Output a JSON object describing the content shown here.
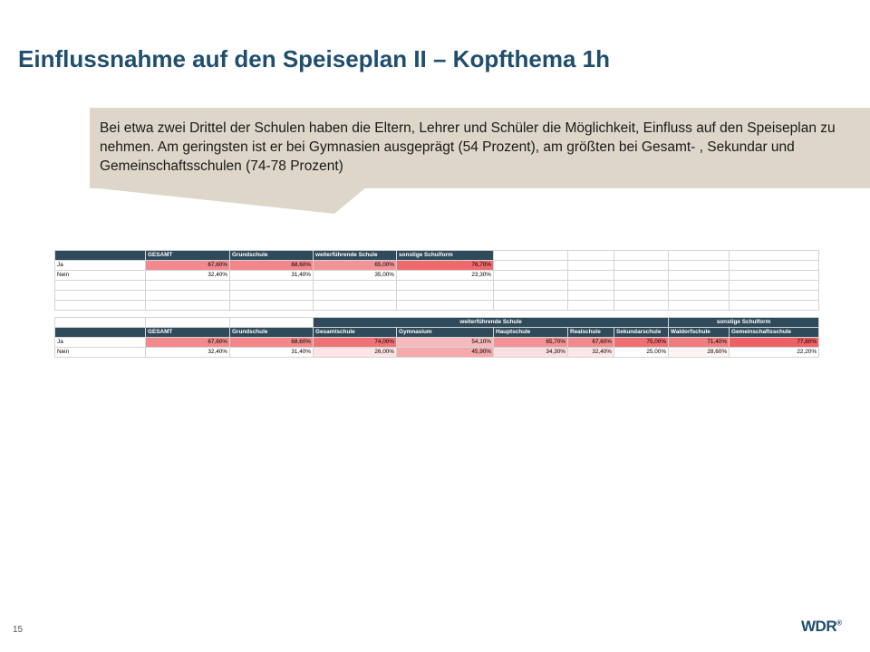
{
  "slide": {
    "title": "Einflussnahme  auf den Speiseplan II – Kopfthema 1h",
    "callout": "Bei etwa zwei Drittel der Schulen haben die Eltern, Lehrer und Schüler die Möglichkeit, Einfluss auf den Speiseplan zu nehmen. Am geringsten ist er bei Gymnasien ausgeprägt (54 Prozent), am größten bei Gesamt- , Sekundar und Gemeinschaftsschulen  (74-78 Prozent)",
    "callout_color": "#ddd6c9",
    "title_color": "#1f4e6e",
    "header_color": "#2e4a5b",
    "page_number": "15",
    "logo": "WDR",
    "logo_mark": "®"
  },
  "table1": {
    "headers": [
      "GESAMT",
      "Grundschule",
      "weiterführende Schule",
      "sonstige Schulform"
    ],
    "rows": [
      {
        "label": "Ja",
        "values": [
          "67,60%",
          "68,60%",
          "65,00%",
          "76,70%"
        ]
      },
      {
        "label": "Nein",
        "values": [
          "32,40%",
          "31,40%",
          "35,00%",
          "23,30%"
        ]
      }
    ]
  },
  "table2": {
    "groups": [
      "weiterführende Schule",
      "sonstige Schulform"
    ],
    "headers": [
      "GESAMT",
      "Grundschule",
      "Gesamtschule",
      "Gymnasium",
      "Hauptschule",
      "Realschule",
      "Sekundarschule",
      "Waldorfschule",
      "Gemeinschaftsschule"
    ],
    "rows": [
      {
        "label": "Ja",
        "values": [
          "67,60%",
          "68,60%",
          "74,00%",
          "54,10%",
          "65,70%",
          "67,60%",
          "75,00%",
          "71,40%",
          "77,80%"
        ]
      },
      {
        "label": "Nein",
        "values": [
          "32,40%",
          "31,40%",
          "26,00%",
          "45,90%",
          "34,30%",
          "32,40%",
          "25,00%",
          "28,60%",
          "22,20%"
        ]
      }
    ]
  }
}
